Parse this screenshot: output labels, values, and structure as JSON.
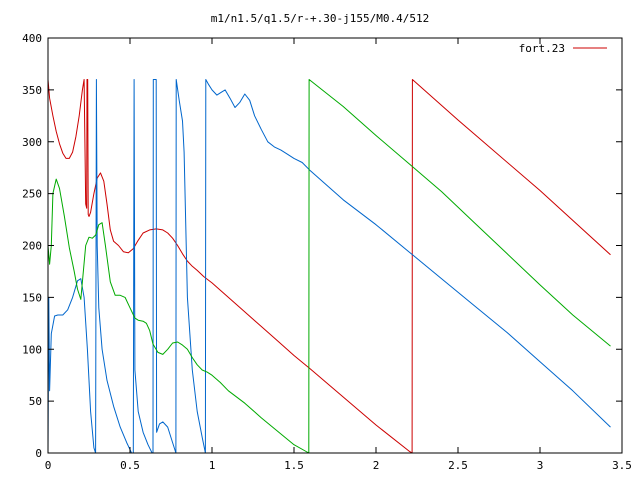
{
  "chart_data": {
    "type": "line",
    "title": "m1/n1.5/q1.5/r-+.30-j155/M0.4/512",
    "xlabel": "",
    "ylabel": "",
    "xlim": [
      0,
      3.5
    ],
    "ylim": [
      0,
      400
    ],
    "x_ticks": [
      0,
      0.5,
      1,
      1.5,
      2,
      2.5,
      3,
      3.5
    ],
    "x_tick_labels": [
      "0",
      "0.5",
      "1",
      "1.5",
      "2",
      "2.5",
      "3",
      "3.5"
    ],
    "y_ticks": [
      0,
      50,
      100,
      150,
      200,
      250,
      300,
      350,
      400
    ],
    "y_tick_labels": [
      "0",
      "50",
      "100",
      "150",
      "200",
      "250",
      "300",
      "350",
      "400"
    ],
    "grid": false,
    "legend": {
      "position": "top-right",
      "entries": [
        "fort.23"
      ]
    },
    "series": [
      {
        "name": "fort.23",
        "color": "#cc0000",
        "points": [
          [
            0,
            360
          ],
          [
            0.01,
            342
          ],
          [
            0.03,
            325
          ],
          [
            0.05,
            310
          ],
          [
            0.07,
            298
          ],
          [
            0.09,
            289
          ],
          [
            0.11,
            284
          ],
          [
            0.13,
            284
          ],
          [
            0.15,
            290
          ],
          [
            0.17,
            305
          ],
          [
            0.19,
            325
          ],
          [
            0.21,
            350
          ],
          [
            0.22,
            360
          ],
          [
            0.225,
            300
          ],
          [
            0.23,
            240
          ],
          [
            0.236,
            236
          ],
          [
            0.238,
            360
          ],
          [
            0.242,
            360
          ],
          [
            0.245,
            230
          ],
          [
            0.25,
            228
          ],
          [
            0.26,
            232
          ],
          [
            0.28,
            250
          ],
          [
            0.3,
            265
          ],
          [
            0.32,
            270
          ],
          [
            0.34,
            262
          ],
          [
            0.36,
            240
          ],
          [
            0.38,
            215
          ],
          [
            0.4,
            204
          ],
          [
            0.43,
            200
          ],
          [
            0.46,
            194
          ],
          [
            0.49,
            193
          ],
          [
            0.52,
            197
          ],
          [
            0.55,
            205
          ],
          [
            0.58,
            212
          ],
          [
            0.62,
            215
          ],
          [
            0.66,
            216
          ],
          [
            0.7,
            215
          ],
          [
            0.73,
            212
          ],
          [
            0.76,
            207
          ],
          [
            0.79,
            200
          ],
          [
            0.82,
            192
          ],
          [
            0.85,
            185
          ],
          [
            0.88,
            180
          ],
          [
            0.91,
            176
          ],
          [
            0.95,
            170
          ],
          [
            1.0,
            164
          ],
          [
            1.1,
            150
          ],
          [
            1.2,
            136
          ],
          [
            1.3,
            122
          ],
          [
            1.4,
            108
          ],
          [
            1.5,
            94
          ],
          [
            1.6,
            81
          ],
          [
            1.8,
            54
          ],
          [
            2.0,
            27
          ],
          [
            2.2,
            2
          ],
          [
            2.22,
            0
          ],
          [
            2.222,
            360
          ],
          [
            2.5,
            321
          ],
          [
            3.0,
            253
          ],
          [
            3.43,
            191
          ]
        ]
      },
      {
        "name": "",
        "color": "#0066cc",
        "points": [
          [
            0,
            0
          ],
          [
            0.005,
            150
          ],
          [
            0.01,
            60
          ],
          [
            0.02,
            115
          ],
          [
            0.04,
            132
          ],
          [
            0.06,
            133
          ],
          [
            0.09,
            133
          ],
          [
            0.12,
            138
          ],
          [
            0.15,
            150
          ],
          [
            0.18,
            166
          ],
          [
            0.2,
            168
          ],
          [
            0.22,
            150
          ],
          [
            0.24,
            100
          ],
          [
            0.26,
            40
          ],
          [
            0.28,
            5
          ],
          [
            0.29,
            0
          ],
          [
            0.295,
            360
          ],
          [
            0.3,
            200
          ],
          [
            0.31,
            140
          ],
          [
            0.33,
            100
          ],
          [
            0.36,
            70
          ],
          [
            0.4,
            45
          ],
          [
            0.44,
            25
          ],
          [
            0.48,
            10
          ],
          [
            0.51,
            0
          ],
          [
            0.52,
            0
          ],
          [
            0.525,
            360
          ],
          [
            0.53,
            80
          ],
          [
            0.55,
            40
          ],
          [
            0.58,
            20
          ],
          [
            0.61,
            8
          ],
          [
            0.635,
            0
          ],
          [
            0.64,
            0
          ],
          [
            0.642,
            360
          ],
          [
            0.66,
            360
          ],
          [
            0.662,
            20
          ],
          [
            0.68,
            28
          ],
          [
            0.7,
            30
          ],
          [
            0.73,
            25
          ],
          [
            0.76,
            10
          ],
          [
            0.78,
            0
          ],
          [
            0.782,
            360
          ],
          [
            0.8,
            340
          ],
          [
            0.82,
            320
          ],
          [
            0.83,
            290
          ],
          [
            0.85,
            150
          ],
          [
            0.88,
            80
          ],
          [
            0.91,
            40
          ],
          [
            0.94,
            15
          ],
          [
            0.96,
            0
          ],
          [
            0.962,
            360
          ],
          [
            0.98,
            355
          ],
          [
            1.0,
            350
          ],
          [
            1.03,
            345
          ],
          [
            1.06,
            348
          ],
          [
            1.08,
            350
          ],
          [
            1.11,
            342
          ],
          [
            1.14,
            333
          ],
          [
            1.17,
            338
          ],
          [
            1.2,
            346
          ],
          [
            1.23,
            340
          ],
          [
            1.26,
            325
          ],
          [
            1.3,
            312
          ],
          [
            1.34,
            300
          ],
          [
            1.38,
            295
          ],
          [
            1.42,
            292
          ],
          [
            1.46,
            288
          ],
          [
            1.5,
            284
          ],
          [
            1.55,
            280
          ],
          [
            1.6,
            272
          ],
          [
            1.8,
            244
          ],
          [
            2.0,
            220
          ],
          [
            2.2,
            194
          ],
          [
            2.4,
            168
          ],
          [
            2.6,
            142
          ],
          [
            2.8,
            116
          ],
          [
            3.0,
            88
          ],
          [
            3.2,
            60
          ],
          [
            3.43,
            25
          ]
        ]
      },
      {
        "name": "",
        "color": "#00aa00",
        "points": [
          [
            0,
            200
          ],
          [
            0.01,
            182
          ],
          [
            0.02,
            200
          ],
          [
            0.03,
            250
          ],
          [
            0.05,
            264
          ],
          [
            0.07,
            255
          ],
          [
            0.1,
            228
          ],
          [
            0.13,
            198
          ],
          [
            0.16,
            175
          ],
          [
            0.18,
            158
          ],
          [
            0.2,
            148
          ],
          [
            0.21,
            165
          ],
          [
            0.23,
            200
          ],
          [
            0.25,
            208
          ],
          [
            0.27,
            207
          ],
          [
            0.29,
            210
          ],
          [
            0.31,
            220
          ],
          [
            0.33,
            222
          ],
          [
            0.35,
            200
          ],
          [
            0.38,
            165
          ],
          [
            0.41,
            152
          ],
          [
            0.44,
            152
          ],
          [
            0.47,
            150
          ],
          [
            0.5,
            140
          ],
          [
            0.53,
            130
          ],
          [
            0.55,
            128
          ],
          [
            0.58,
            127
          ],
          [
            0.6,
            125
          ],
          [
            0.62,
            118
          ],
          [
            0.64,
            105
          ],
          [
            0.67,
            97
          ],
          [
            0.7,
            95
          ],
          [
            0.73,
            100
          ],
          [
            0.76,
            106
          ],
          [
            0.79,
            107
          ],
          [
            0.82,
            104
          ],
          [
            0.85,
            100
          ],
          [
            0.88,
            92
          ],
          [
            0.91,
            85
          ],
          [
            0.94,
            80
          ],
          [
            0.97,
            78
          ],
          [
            1.0,
            75
          ],
          [
            1.05,
            68
          ],
          [
            1.1,
            60
          ],
          [
            1.2,
            48
          ],
          [
            1.3,
            34
          ],
          [
            1.4,
            21
          ],
          [
            1.5,
            8
          ],
          [
            1.59,
            0
          ],
          [
            1.592,
            360
          ],
          [
            1.8,
            334
          ],
          [
            2.0,
            306
          ],
          [
            2.2,
            279
          ],
          [
            2.4,
            252
          ],
          [
            2.6,
            222
          ],
          [
            2.8,
            192
          ],
          [
            3.0,
            162
          ],
          [
            3.2,
            133
          ],
          [
            3.43,
            103
          ]
        ]
      }
    ]
  }
}
